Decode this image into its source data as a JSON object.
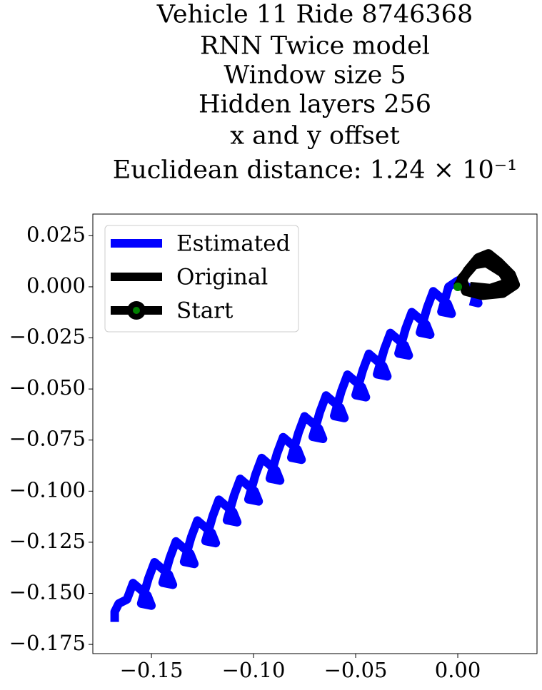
{
  "chart_data": {
    "type": "line",
    "title": [
      "Vehicle 11 Ride 8746368",
      "RNN Twice model",
      "Window size 5",
      "Hidden layers 256",
      "x and y offset",
      "Euclidean distance: 1.24 × 10⁻¹"
    ],
    "series": [
      {
        "name": "Estimated",
        "color": "#0000ff",
        "x": [
          -0.168,
          -0.168,
          -0.166,
          -0.162,
          -0.159,
          -0.152,
          -0.15,
          -0.155,
          -0.1515,
          -0.1485,
          -0.1415,
          -0.1395,
          -0.1445,
          -0.141,
          -0.138,
          -0.131,
          -0.129,
          -0.134,
          -0.1305,
          -0.1275,
          -0.1205,
          -0.1185,
          -0.1235,
          -0.12,
          -0.117,
          -0.11,
          -0.108,
          -0.113,
          -0.1095,
          -0.1065,
          -0.0995,
          -0.0975,
          -0.1025,
          -0.099,
          -0.096,
          -0.089,
          -0.087,
          -0.092,
          -0.0885,
          -0.0855,
          -0.0785,
          -0.0765,
          -0.0815,
          -0.078,
          -0.075,
          -0.068,
          -0.066,
          -0.071,
          -0.0675,
          -0.0645,
          -0.0575,
          -0.0555,
          -0.0605,
          -0.057,
          -0.054,
          -0.047,
          -0.045,
          -0.05,
          -0.0465,
          -0.0435,
          -0.0365,
          -0.0345,
          -0.0395,
          -0.036,
          -0.033,
          -0.026,
          -0.024,
          -0.029,
          -0.0255,
          -0.0225,
          -0.0155,
          -0.0135,
          -0.0185,
          -0.015,
          -0.012,
          -0.005,
          -0.003,
          -0.008,
          -0.0045,
          0.0,
          0.008,
          0.01,
          0.006
        ],
        "values": [
          -0.164,
          -0.159,
          -0.155,
          -0.153,
          -0.145,
          -0.151,
          -0.156,
          -0.155,
          -0.1428,
          -0.1348,
          -0.1408,
          -0.1458,
          -0.1448,
          -0.1326,
          -0.1246,
          -0.1306,
          -0.1356,
          -0.1346,
          -0.1224,
          -0.1144,
          -0.1204,
          -0.1254,
          -0.1244,
          -0.1122,
          -0.1042,
          -0.1102,
          -0.1152,
          -0.1142,
          -0.102,
          -0.094,
          -0.1,
          -0.105,
          -0.104,
          -0.0918,
          -0.0838,
          -0.0898,
          -0.0948,
          -0.0938,
          -0.0816,
          -0.0736,
          -0.0796,
          -0.0846,
          -0.0836,
          -0.0714,
          -0.0634,
          -0.0694,
          -0.0744,
          -0.0734,
          -0.0612,
          -0.0532,
          -0.0592,
          -0.0642,
          -0.0632,
          -0.051,
          -0.043,
          -0.049,
          -0.054,
          -0.053,
          -0.0408,
          -0.0328,
          -0.0388,
          -0.0438,
          -0.0428,
          -0.0306,
          -0.0226,
          -0.0286,
          -0.0336,
          -0.0326,
          -0.0204,
          -0.0124,
          -0.0184,
          -0.0234,
          -0.0224,
          -0.0102,
          -0.0022,
          -0.0082,
          -0.0132,
          -0.0122,
          0.0,
          0.003,
          -0.002,
          -0.008,
          -0.007
        ]
      },
      {
        "name": "Original",
        "color": "#000000",
        "x": [
          0,
          0.005,
          0.01,
          0.015,
          0.02,
          0.026,
          0.028,
          0.022,
          0.012,
          0.004,
          0.002,
          0.008,
          0.014,
          0.022,
          0.025,
          0.016,
          0.006
        ],
        "values": [
          0,
          0.008,
          0.014,
          0.016,
          0.012,
          0.006,
          0.001,
          -0.003,
          -0.004,
          -0.002,
          0.004,
          0.011,
          0.012,
          0.007,
          0.002,
          -0.001,
          0.0
        ]
      },
      {
        "name": "Start",
        "color": "#000000",
        "marker_color": "#008000",
        "x": [
          0
        ],
        "values": [
          0
        ]
      }
    ],
    "xlim": [
      -0.1787,
      0.0388
    ],
    "ylim": [
      -0.1795,
      0.0356
    ],
    "xticks": [
      {
        "value": -0.15,
        "label": "−0.15"
      },
      {
        "value": -0.1,
        "label": "−0.10"
      },
      {
        "value": -0.05,
        "label": "−0.05"
      },
      {
        "value": 0.0,
        "label": "0.00"
      }
    ],
    "yticks": [
      0.025,
      {
        "value": 0.0,
        "label": "0.000"
      },
      {
        "value": -0.025,
        "label": "−0.025"
      },
      {
        "value": -0.05,
        "label": "−0.050"
      },
      {
        "value": -0.075,
        "label": "−0.075"
      },
      {
        "value": -0.1,
        "label": "−0.100"
      },
      {
        "value": -0.125,
        "label": "−0.125"
      },
      {
        "value": -0.15,
        "label": "−0.150"
      },
      {
        "value": -0.175,
        "label": "−0.175"
      }
    ],
    "legend": "upper left"
  }
}
